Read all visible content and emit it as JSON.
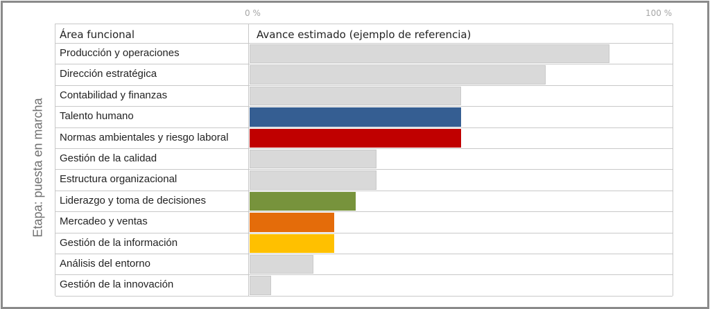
{
  "axis": {
    "min_label": "0 %",
    "max_label": "100 %"
  },
  "stage_label": "Etapa: puesta en marcha",
  "chart_data": {
    "type": "bar",
    "orientation": "horizontal",
    "header_category": "Área funcional",
    "header_value": "Avance estimado (ejemplo de referencia)",
    "xlim": [
      0,
      100
    ],
    "unit": "%",
    "categories": [
      "Producción y operaciones",
      "Dirección estratégica",
      "Contabilidad y finanzas",
      "Talento humano",
      "Normas ambientales y riesgo laboral",
      "Gestión de la calidad",
      "Estructura organizacional",
      "Liderazgo y toma de decisiones",
      "Mercadeo y ventas",
      "Gestión de la información",
      "Análisis del entorno",
      "Gestión de la innovación"
    ],
    "values": [
      85,
      70,
      50,
      50,
      50,
      30,
      30,
      25,
      20,
      20,
      15,
      5
    ],
    "colors": [
      "#d9d9d9",
      "#d9d9d9",
      "#d9d9d9",
      "#355e92",
      "#c00000",
      "#d9d9d9",
      "#d9d9d9",
      "#77933c",
      "#e46c0a",
      "#ffc000",
      "#d9d9d9",
      "#d9d9d9"
    ]
  }
}
